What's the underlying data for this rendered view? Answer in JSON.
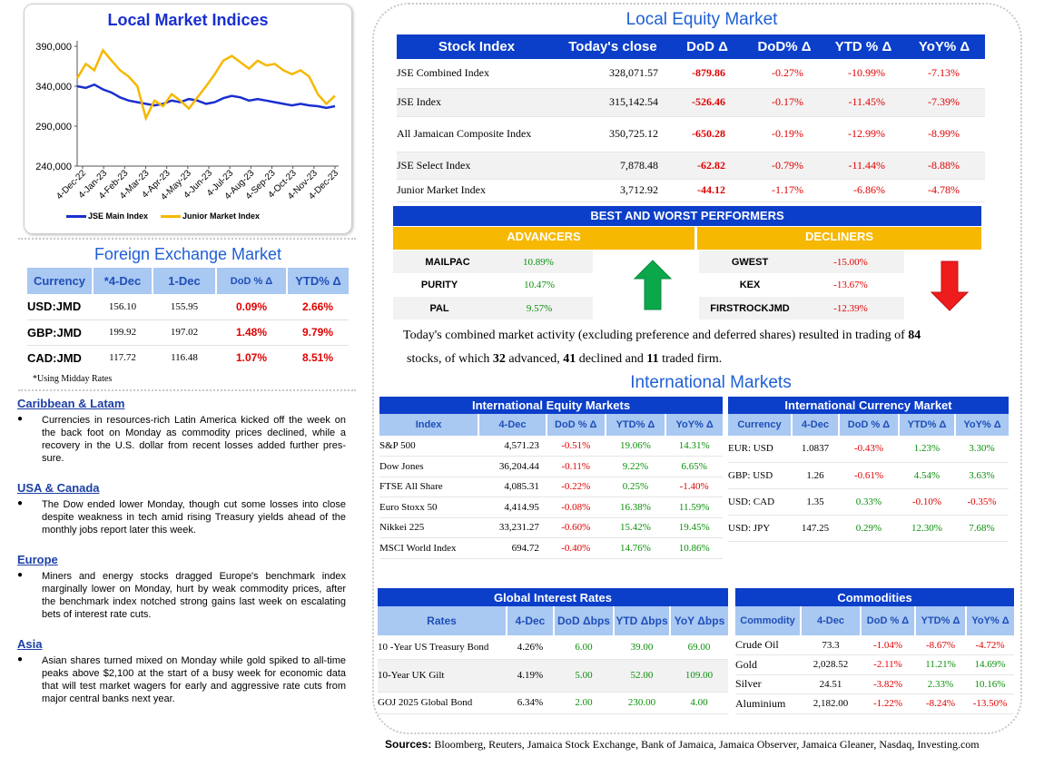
{
  "local_indices": {
    "title": "Local Market Indices",
    "legend_main": "JSE Main Index",
    "legend_junior": "Junior Market Index",
    "colors": {
      "main": "#1a2fd0",
      "junior": "#f5b800"
    }
  },
  "chart_data": {
    "type": "line",
    "title": "Local Market Indices",
    "x_tick_labels": [
      "4-Dec-22",
      "4-Jan-23",
      "4-Feb-23",
      "4-Mar-23",
      "4-Apr-23",
      "4-May-23",
      "4-Jun-23",
      "4-Jul-23",
      "4-Aug-23",
      "4-Sep-23",
      "4-Oct-23",
      "4-Nov-23",
      "4-Dec-23"
    ],
    "y_tick_labels": [
      "390,000",
      "340,000",
      "290,000",
      "240,000"
    ],
    "ylim": [
      240000,
      390000
    ],
    "grid": false,
    "legend_position": "bottom",
    "series": [
      {
        "name": "JSE Main Index",
        "values": [
          340000,
          338000,
          342000,
          336000,
          332000,
          326000,
          322000,
          320000,
          318000,
          316000,
          318000,
          322000,
          320000,
          324000,
          322000,
          318000,
          320000,
          325000,
          328000,
          326000,
          322000,
          324000,
          322000,
          320000,
          318000,
          316000,
          318000,
          316000,
          315000,
          313000,
          315000
        ]
      },
      {
        "name": "Junior Market Index",
        "values": [
          350000,
          368000,
          360000,
          385000,
          372000,
          360000,
          352000,
          340000,
          300000,
          322000,
          315000,
          330000,
          322000,
          312000,
          326000,
          340000,
          355000,
          372000,
          378000,
          370000,
          362000,
          372000,
          366000,
          368000,
          360000,
          355000,
          360000,
          352000,
          330000,
          318000,
          328000
        ]
      }
    ]
  },
  "fx": {
    "title": "Foreign Exchange Market",
    "headers": [
      "Currency",
      "*4-Dec",
      "1-Dec",
      "DoD % Δ",
      "YTD% Δ"
    ],
    "rows": [
      {
        "c": "USD:JMD",
        "a": "156.10",
        "b": "155.95",
        "d": "0.09%",
        "y": "2.66%"
      },
      {
        "c": "GBP:JMD",
        "a": "199.92",
        "b": "197.02",
        "d": "1.48%",
        "y": "9.79%"
      },
      {
        "c": "CAD:JMD",
        "a": "117.72",
        "b": "116.48",
        "d": "1.07%",
        "y": "8.51%"
      }
    ],
    "note": "*Using Midday Rates"
  },
  "news": [
    {
      "heading": "Caribbean & Latam",
      "text": "Currencies in resources-rich Latin America kicked off the week on the back foot on Monday as commodity prices declined, while a recovery in the U.S. dollar from recent losses added further pres-sure."
    },
    {
      "heading": "USA & Canada",
      "text": "The Dow ended lower Monday, though cut some losses into close despite weakness in tech amid rising Treasury yields ahead of the monthly jobs report later this week."
    },
    {
      "heading": "Europe",
      "text": "Miners and energy stocks dragged Europe's benchmark index marginally lower on Monday, hurt by weak commodity prices, after the benchmark index notched strong gains last week on escalating bets of interest rate cuts."
    },
    {
      "heading": "Asia",
      "text": "Asian shares turned mixed on Monday while gold spiked to all-time peaks above $2,100 at the start of a busy week for economic data that will test market wagers for early and aggressive rate cuts from major central banks next year."
    }
  ],
  "equity": {
    "title": "Local Equity Market",
    "headers": [
      "Stock Index",
      "Today's close",
      "DoD  Δ",
      "DoD% Δ",
      "YTD % Δ",
      "YoY% Δ"
    ],
    "rows": [
      [
        "JSE Combined Index",
        "328,071.57",
        "-879.86",
        "-0.27%",
        "-10.99%",
        "-7.13%"
      ],
      [
        "JSE Index",
        "315,142.54",
        "-526.46",
        "-0.17%",
        "-11.45%",
        "-7.39%"
      ],
      [
        "All Jamaican Composite Index",
        "350,725.12",
        "-650.28",
        "-0.19%",
        "-12.99%",
        "-8.99%"
      ],
      [
        "JSE Select Index",
        "7,878.48",
        "-62.82",
        "-0.79%",
        "-11.44%",
        "-8.88%"
      ],
      [
        "Junior Market Index",
        "3,712.92",
        "-44.12",
        "-1.17%",
        "-6.86%",
        "-4.78%"
      ]
    ]
  },
  "performers": {
    "title": "BEST AND WORST PERFORMERS",
    "adv_label": "ADVANCERS",
    "dec_label": "DECLINERS",
    "advancers": [
      [
        "MAILPAC",
        "10.89%"
      ],
      [
        "PURITY",
        "10.47%"
      ],
      [
        "PAL",
        "9.57%"
      ]
    ],
    "decliners": [
      [
        "GWEST",
        "-15.00%"
      ],
      [
        "KEX",
        "-13.67%"
      ],
      [
        "FIRSTROCKJMD",
        "-12.39%"
      ]
    ]
  },
  "summary": {
    "p1": "Today's combined market activity (excluding preference and deferred shares) resulted in trading of ",
    "n_total": "84",
    "p2": "stocks, of which ",
    "n_adv": "32",
    "p3": " advanced, ",
    "n_dec": "41",
    "p4": " declined and ",
    "n_firm": "11",
    "p5": " traded firm."
  },
  "intl": {
    "title": "International Markets",
    "equity_title": "International Equity Markets",
    "equity_headers": [
      "Index",
      "4-Dec",
      "DoD % Δ",
      "YTD% Δ",
      "YoY% Δ"
    ],
    "equity_rows": [
      [
        "S&P 500",
        "4,571.23",
        "-0.51%",
        "19.06%",
        "14.31%"
      ],
      [
        "Dow Jones",
        "36,204.44",
        "-0.11%",
        "9.22%",
        "6.65%"
      ],
      [
        "FTSE All Share",
        "4,085.31",
        "-0.22%",
        "0.25%",
        "-1.40%"
      ],
      [
        "Euro Stoxx 50",
        "4,414.95",
        "-0.08%",
        "16.38%",
        "11.59%"
      ],
      [
        "Nikkei 225",
        "33,231.27",
        "-0.60%",
        "15.42%",
        "19.45%"
      ],
      [
        "MSCI World Index",
        "694.72",
        "-0.40%",
        "14.76%",
        "10.86%"
      ]
    ],
    "fx_title": "International Currency Market",
    "fx_headers": [
      "Currency",
      "4-Dec",
      "DoD % Δ",
      "YTD% Δ",
      "YoY% Δ"
    ],
    "fx_rows": [
      [
        "EUR: USD",
        "1.0837",
        "-0.43%",
        "1.23%",
        "3.30%"
      ],
      [
        "GBP: USD",
        "1.26",
        "-0.61%",
        "4.54%",
        "3.63%"
      ],
      [
        "USD: CAD",
        "1.35",
        "0.33%",
        "-0.10%",
        "-0.35%"
      ],
      [
        "USD: JPY",
        "147.25",
        "0.29%",
        "12.30%",
        "7.68%"
      ]
    ],
    "rates_title": "Global Interest Rates",
    "rates_headers": [
      "Rates",
      "4-Dec",
      "DoD Δbps",
      "YTD Δbps",
      "YoY Δbps"
    ],
    "rates_rows": [
      [
        "10 -Year US Treasury Bond",
        "4.26%",
        "6.00",
        "39.00",
        "69.00"
      ],
      [
        "10-Year UK Gilt",
        "4.19%",
        "5.00",
        "52.00",
        "109.00"
      ],
      [
        "GOJ 2025 Global Bond",
        "6.34%",
        "2.00",
        "230.00",
        "4.00"
      ]
    ],
    "comm_title": "Commodities",
    "comm_headers": [
      "Commodity",
      "4-Dec",
      "DoD % Δ",
      "YTD% Δ",
      "YoY% Δ"
    ],
    "comm_rows": [
      [
        "Crude Oil",
        "73.3",
        "-1.04%",
        "-8.67%",
        "-4.72%"
      ],
      [
        "Gold",
        "2,028.52",
        "-2.11%",
        "11.21%",
        "14.69%"
      ],
      [
        "Silver",
        "24.51",
        "-3.82%",
        "2.33%",
        "10.16%"
      ],
      [
        "Aluminium",
        "2,182.00",
        "-1.22%",
        "-8.24%",
        "-13.50%"
      ]
    ]
  },
  "sources": {
    "label": "Sources:",
    "text": " Bloomberg, Reuters, Jamaica Stock Exchange, Bank of Jamaica, Jamaica Observer, Jamaica Gleaner, Nasdaq, Investing.com"
  }
}
